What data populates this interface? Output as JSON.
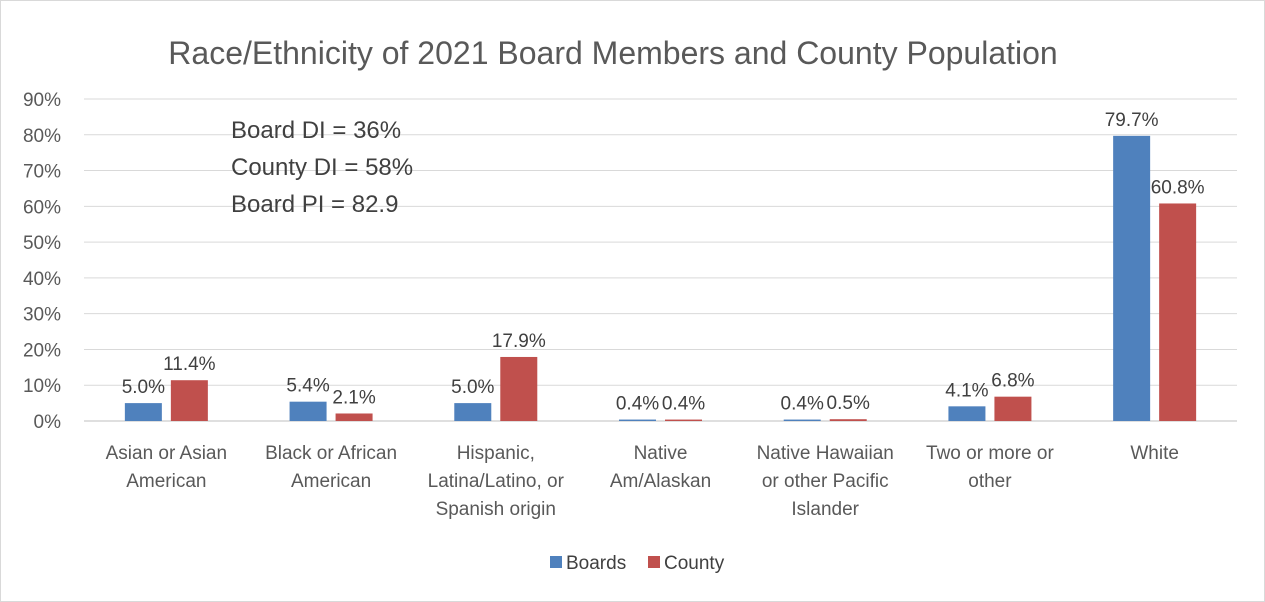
{
  "chart_data": {
    "type": "bar",
    "title": "Race/Ethnicity of 2021 Board Members and County Population",
    "xlabel": "",
    "ylabel": "",
    "ylim": [
      0,
      90
    ],
    "y_ticks": [
      "0%",
      "10%",
      "20%",
      "30%",
      "40%",
      "50%",
      "60%",
      "70%",
      "80%",
      "90%"
    ],
    "grid": true,
    "legend_position": "bottom",
    "categories": [
      [
        "Asian or Asian",
        "American"
      ],
      [
        "Black or African",
        "American"
      ],
      [
        "Hispanic,",
        "Latina/Latino, or",
        "Spanish origin"
      ],
      [
        "Native",
        "Am/Alaskan"
      ],
      [
        "Native Hawaiian",
        "or other Pacific",
        "Islander"
      ],
      [
        "Two or more or",
        "other"
      ],
      [
        "White"
      ]
    ],
    "series": [
      {
        "name": "Boards",
        "color": "#4f81bd",
        "values": [
          5.0,
          5.4,
          5.0,
          0.4,
          0.4,
          4.1,
          79.7
        ],
        "labels": [
          "5.0%",
          "5.4%",
          "5.0%",
          "0.4%",
          "0.4%",
          "4.1%",
          "79.7%"
        ]
      },
      {
        "name": "County",
        "color": "#c0504d",
        "values": [
          11.4,
          2.1,
          17.9,
          0.4,
          0.5,
          6.8,
          60.8
        ],
        "labels": [
          "11.4%",
          "2.1%",
          "17.9%",
          "0.4%",
          "0.5%",
          "6.8%",
          "60.8%"
        ]
      }
    ],
    "annotations": [
      "Board DI = 36%",
      "County DI = 58%",
      "Board PI = 82.9"
    ]
  }
}
